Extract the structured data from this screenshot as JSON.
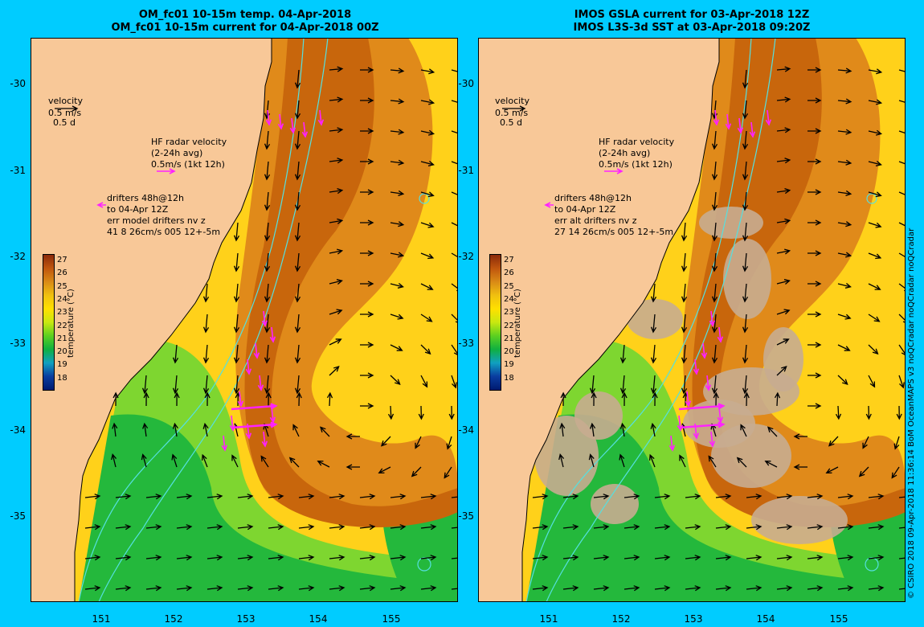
{
  "titles": {
    "left_line1": "OM_fc01 10-15m temp. 04-Apr-2018",
    "left_line2": "OM_fc01 10-15m current for 04-Apr-2018 00Z",
    "right_line1": "IMOS GSLA current for 03-Apr-2018 12Z",
    "right_line2": "IMOS L3S-3d SST at 03-Apr-2018 09:20Z"
  },
  "legend_left": {
    "velocity": "velocity",
    "velocity_scale": "0.5 m/s",
    "velocity_days": "0.5 d",
    "hf_title": "HF radar velocity",
    "hf_avg": "(2-24h avg)",
    "hf_scale": "0.5m/s (1kt 12h)",
    "drift1": "drifters 48h@12h",
    "drift2": "to 04-Apr 12Z",
    "drift3": "err model drifters nv z",
    "drift4": "41 8 26cm/s 005 12+-5m"
  },
  "legend_right": {
    "velocity": "velocity",
    "velocity_scale": "0.5 m/s",
    "velocity_days": "0.5 d",
    "hf_title": "HF radar velocity",
    "hf_avg": "(2-24h avg)",
    "hf_scale": "0.5m/s (1kt 12h)",
    "drift1": "drifters 48h@12h",
    "drift2": "to 04-Apr 12Z",
    "drift3": "err alt drifters nv z",
    "drift4": "27 14 26cm/s 005 12+-5m"
  },
  "colorbar": {
    "title": "temperature (°C)",
    "labels": [
      "27",
      "26",
      "25",
      "24",
      "23",
      "22",
      "21",
      "20",
      "19",
      "18"
    ],
    "colors": [
      "#8b2a0a",
      "#c0560e",
      "#d98a16",
      "#f0c010",
      "#ffe000",
      "#c8e810",
      "#5cd020",
      "#10b040",
      "#10a0c0",
      "#0a3da0",
      "#001a70"
    ]
  },
  "axes": {
    "y_labels": [
      "-30",
      "-31",
      "-32",
      "-33",
      "-34",
      "-35"
    ],
    "x_labels": [
      "151",
      "152",
      "153",
      "154",
      "155"
    ]
  },
  "footer": "© CSIRO 2018  09-Apr-2018 11:36:14 BoM OceanMAPS v3 noQCradar noQCradar noQCradar",
  "map_colors": {
    "land": "#f8c898",
    "warm": "#e08a1a",
    "core": "#c8660c",
    "mild": "#ffd11a",
    "cool": "#7ed630",
    "cold": "#24b83c",
    "fill": "#c8ac90",
    "radar": "#ff22ff",
    "isobath": "#55e0e0"
  }
}
